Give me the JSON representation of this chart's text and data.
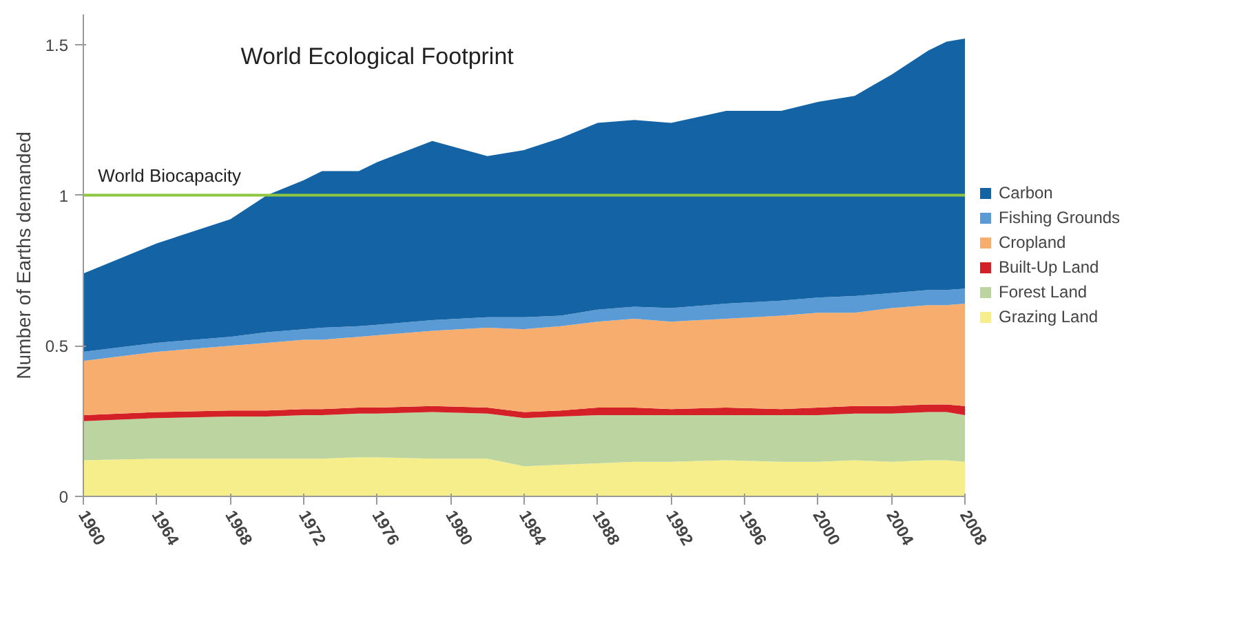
{
  "chart_data": {
    "type": "area",
    "stacked": true,
    "title": "World Ecological Footprint",
    "ylabel": "Number of Earths demanded",
    "x": [
      1960,
      1964,
      1968,
      1970,
      1972,
      1973,
      1975,
      1976,
      1979,
      1982,
      1984,
      1986,
      1988,
      1990,
      1992,
      1995,
      1998,
      2000,
      2002,
      2004,
      2006,
      2007,
      2008
    ],
    "series": [
      {
        "name": "Grazing Land",
        "color": "#f5ee8a",
        "values": [
          0.12,
          0.125,
          0.125,
          0.125,
          0.125,
          0.125,
          0.13,
          0.13,
          0.125,
          0.125,
          0.1,
          0.105,
          0.11,
          0.115,
          0.115,
          0.12,
          0.115,
          0.115,
          0.12,
          0.115,
          0.12,
          0.12,
          0.115
        ]
      },
      {
        "name": "Forest Land",
        "color": "#bcd4a0",
        "values": [
          0.13,
          0.135,
          0.14,
          0.14,
          0.145,
          0.145,
          0.145,
          0.145,
          0.155,
          0.15,
          0.16,
          0.16,
          0.16,
          0.155,
          0.155,
          0.15,
          0.155,
          0.155,
          0.155,
          0.16,
          0.16,
          0.16,
          0.155
        ]
      },
      {
        "name": "Built-Up Land",
        "color": "#d42027",
        "values": [
          0.02,
          0.02,
          0.02,
          0.02,
          0.02,
          0.02,
          0.02,
          0.02,
          0.02,
          0.02,
          0.02,
          0.02,
          0.025,
          0.025,
          0.02,
          0.025,
          0.02,
          0.025,
          0.025,
          0.025,
          0.025,
          0.025,
          0.03
        ]
      },
      {
        "name": "Cropland",
        "color": "#f6ad6e",
        "values": [
          0.18,
          0.2,
          0.215,
          0.225,
          0.23,
          0.23,
          0.235,
          0.24,
          0.25,
          0.265,
          0.275,
          0.28,
          0.285,
          0.295,
          0.29,
          0.295,
          0.31,
          0.315,
          0.31,
          0.325,
          0.33,
          0.33,
          0.34
        ]
      },
      {
        "name": "Fishing Grounds",
        "color": "#5b9bd5",
        "values": [
          0.03,
          0.03,
          0.03,
          0.035,
          0.035,
          0.04,
          0.035,
          0.035,
          0.035,
          0.035,
          0.04,
          0.035,
          0.04,
          0.04,
          0.045,
          0.05,
          0.05,
          0.05,
          0.055,
          0.05,
          0.05,
          0.05,
          0.05
        ]
      },
      {
        "name": "Carbon",
        "color": "#1464a5",
        "values": [
          0.26,
          0.33,
          0.39,
          0.455,
          0.495,
          0.52,
          0.515,
          0.54,
          0.595,
          0.535,
          0.555,
          0.59,
          0.62,
          0.62,
          0.615,
          0.64,
          0.63,
          0.65,
          0.665,
          0.725,
          0.795,
          0.825,
          0.83
        ]
      }
    ],
    "xlim": [
      1960,
      2008
    ],
    "ylim": [
      0,
      1.6
    ],
    "xticks": [
      1960,
      1964,
      1968,
      1972,
      1976,
      1980,
      1984,
      1988,
      1992,
      1996,
      2000,
      2004,
      2008
    ],
    "yticks": [
      0,
      0.5,
      1,
      1.5
    ],
    "ref_lines": [
      {
        "axis": "y",
        "value": 1,
        "label": "World Biocapacity",
        "color": "#8dc63f"
      }
    ],
    "grid": false,
    "legend": "right"
  }
}
